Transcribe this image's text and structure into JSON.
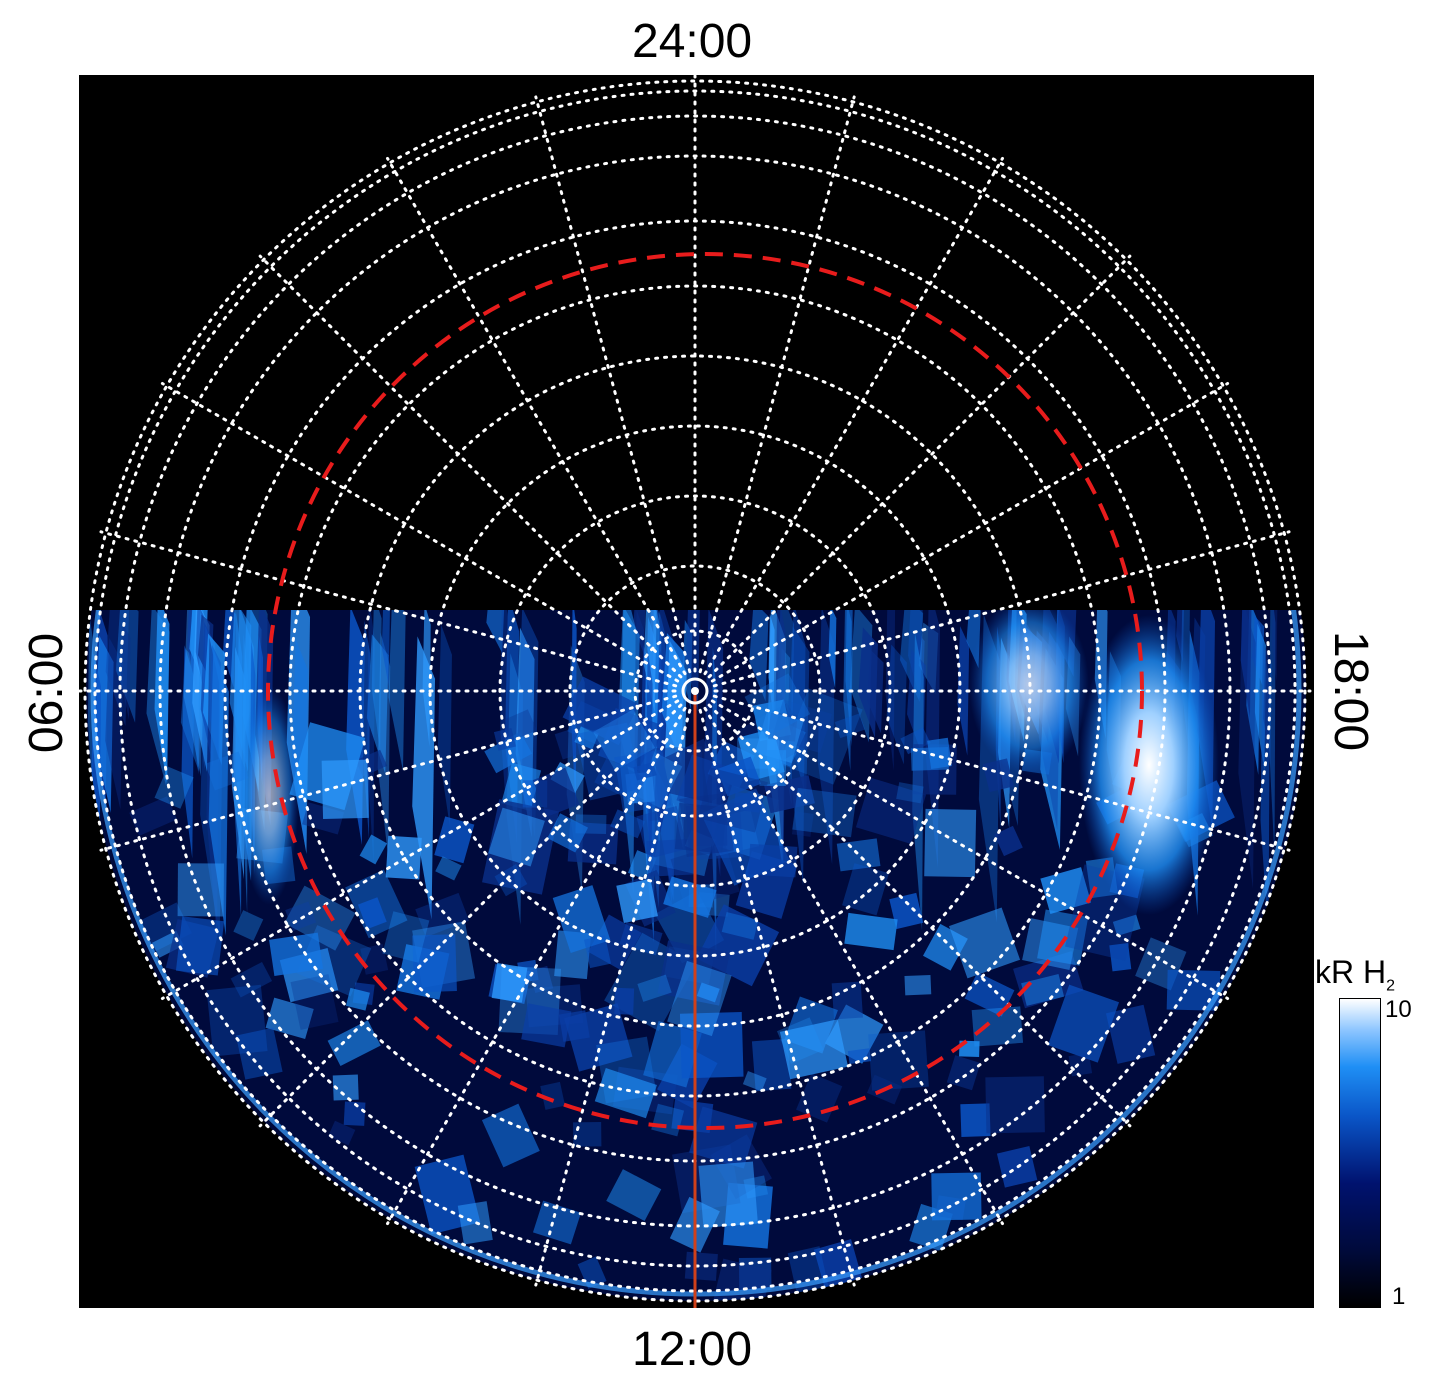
{
  "labels": {
    "top": "24:00",
    "bottom": "12:00",
    "left": "06:00",
    "right": "18:00"
  },
  "colorbar": {
    "title_main": "kR H",
    "title_sub": "2",
    "max": "10",
    "min": "1",
    "colors": [
      "#000000",
      "#00126e",
      "#0a56c8",
      "#1f8ff5",
      "#ffffff"
    ]
  },
  "overlay": {
    "grid_color": "#ffffff",
    "oval_color": "#e81c1c",
    "meridian_color": "#d0401a"
  }
}
